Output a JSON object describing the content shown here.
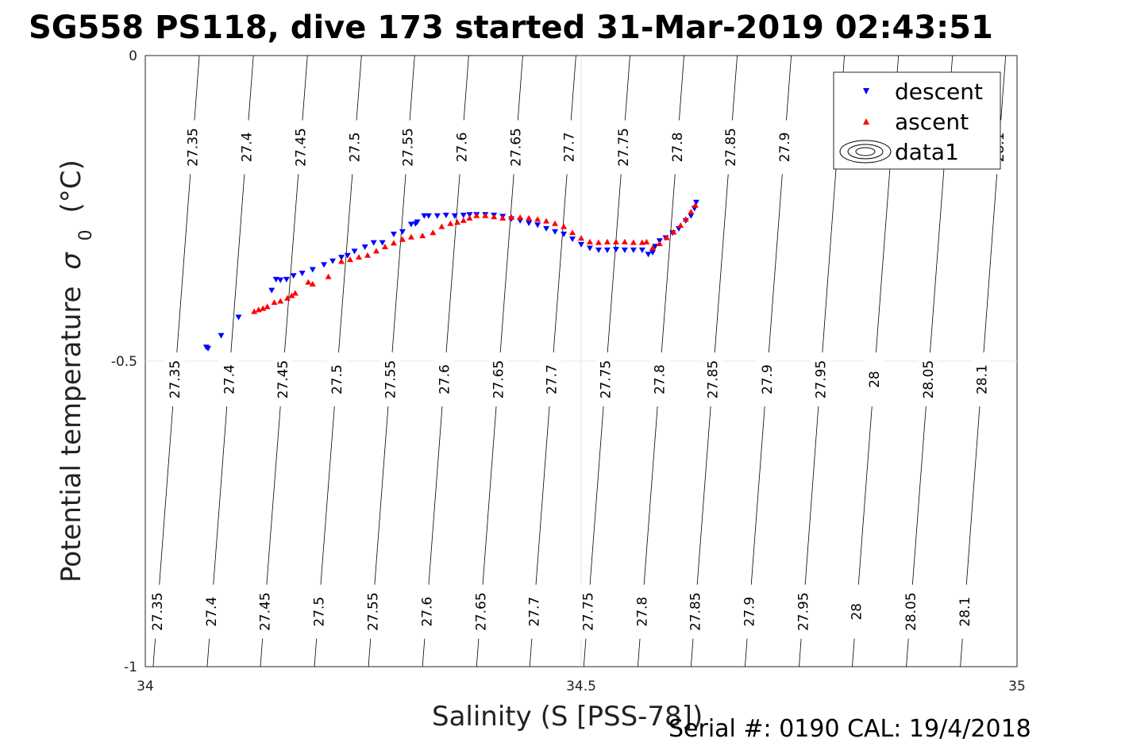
{
  "chart_data": {
    "type": "scatter",
    "title": "SG558 PS118, dive 173 started 31-Mar-2019 02:43:51",
    "xlabel": "Salinity (S [PSS-78])",
    "ylabel": "Potential temperature",
    "ylabel_sigma": "σ",
    "ylabel_sub": "0",
    "ylabel_unit": "(°C)",
    "xlim": [
      34,
      35
    ],
    "ylim": [
      -1,
      0
    ],
    "xticks": [
      "34",
      "34.5",
      "35"
    ],
    "yticks": [
      "0",
      "-0.5",
      "-1"
    ],
    "grid": true,
    "legend_position": "top-right",
    "legend": [
      "descent",
      "ascent",
      "data1"
    ],
    "footer": "Serial #: 0190  CAL: 19/4/2018",
    "colors": {
      "descent": "#0000ff",
      "ascent": "#ff0000",
      "contour": "#000000"
    },
    "density_contours": {
      "levels": [
        "27.35",
        "27.4",
        "27.45",
        "27.5",
        "27.55",
        "27.6",
        "27.65",
        "27.7",
        "27.75",
        "27.8",
        "27.85",
        "27.9",
        "27.95",
        "28",
        "28.05",
        "28.1"
      ],
      "s_top": [
        34.062,
        34.124,
        34.186,
        34.248,
        34.309,
        34.371,
        34.433,
        34.494,
        34.556,
        34.618,
        34.679,
        34.741,
        34.802,
        34.864,
        34.926,
        34.987
      ],
      "s_bottom": [
        34.009,
        34.071,
        34.132,
        34.194,
        34.256,
        34.318,
        34.38,
        34.441,
        34.503,
        34.565,
        34.626,
        34.688,
        34.75,
        34.811,
        34.873,
        34.935
      ],
      "label_rows": [
        {
          "t": -0.15,
          "labels": [
            "27.35",
            "27.4",
            "27.45",
            "27.5",
            "27.55",
            "27.6",
            "27.65",
            "27.7",
            "27.75",
            "27.8",
            "27.85",
            "27.9",
            "",
            "",
            "",
            "28.1"
          ]
        },
        {
          "t": -0.53,
          "labels": [
            "27.35",
            "27.4",
            "27.45",
            "27.5",
            "27.55",
            "27.6",
            "27.65",
            "27.7",
            "27.75",
            "27.8",
            "27.85",
            "27.9",
            "27.95",
            "28",
            "28.05",
            "28.1"
          ]
        },
        {
          "t": -0.91,
          "labels": [
            "27.35",
            "27.4",
            "27.45",
            "27.5",
            "27.55",
            "27.6",
            "27.65",
            "27.7",
            "27.75",
            "27.8",
            "27.85",
            "27.9",
            "27.95",
            "28",
            "28.05",
            "28.1"
          ]
        }
      ]
    },
    "series": [
      {
        "name": "descent",
        "marker": "triangle-down",
        "points": [
          [
            34.07,
            -0.477
          ],
          [
            34.072,
            -0.479
          ],
          [
            34.087,
            -0.458
          ],
          [
            34.107,
            -0.428
          ],
          [
            34.145,
            -0.384
          ],
          [
            34.15,
            -0.366
          ],
          [
            34.155,
            -0.367
          ],
          [
            34.162,
            -0.366
          ],
          [
            34.17,
            -0.36
          ],
          [
            34.18,
            -0.356
          ],
          [
            34.192,
            -0.35
          ],
          [
            34.205,
            -0.342
          ],
          [
            34.215,
            -0.336
          ],
          [
            34.225,
            -0.33
          ],
          [
            34.232,
            -0.327
          ],
          [
            34.24,
            -0.32
          ],
          [
            34.252,
            -0.313
          ],
          [
            34.262,
            -0.306
          ],
          [
            34.272,
            -0.306
          ],
          [
            34.285,
            -0.292
          ],
          [
            34.295,
            -0.288
          ],
          [
            34.305,
            -0.276
          ],
          [
            34.31,
            -0.275
          ],
          [
            34.312,
            -0.272
          ],
          [
            34.32,
            -0.262
          ],
          [
            34.325,
            -0.262
          ],
          [
            34.335,
            -0.262
          ],
          [
            34.345,
            -0.261
          ],
          [
            34.355,
            -0.262
          ],
          [
            34.365,
            -0.261
          ],
          [
            34.372,
            -0.26
          ],
          [
            34.38,
            -0.26
          ],
          [
            34.39,
            -0.26
          ],
          [
            34.4,
            -0.261
          ],
          [
            34.41,
            -0.263
          ],
          [
            34.42,
            -0.267
          ],
          [
            34.43,
            -0.27
          ],
          [
            34.44,
            -0.274
          ],
          [
            34.45,
            -0.277
          ],
          [
            34.46,
            -0.283
          ],
          [
            34.47,
            -0.288
          ],
          [
            34.48,
            -0.292
          ],
          [
            34.49,
            -0.3
          ],
          [
            34.5,
            -0.309
          ],
          [
            34.51,
            -0.315
          ],
          [
            34.52,
            -0.318
          ],
          [
            34.53,
            -0.318
          ],
          [
            34.54,
            -0.317
          ],
          [
            34.55,
            -0.318
          ],
          [
            34.56,
            -0.318
          ],
          [
            34.57,
            -0.318
          ],
          [
            34.577,
            -0.325
          ],
          [
            34.582,
            -0.322
          ],
          [
            34.585,
            -0.312
          ],
          [
            34.59,
            -0.303
          ],
          [
            34.597,
            -0.298
          ],
          [
            34.605,
            -0.29
          ],
          [
            34.612,
            -0.283
          ],
          [
            34.62,
            -0.27
          ],
          [
            34.626,
            -0.262
          ],
          [
            34.63,
            -0.25
          ],
          [
            34.632,
            -0.24
          ]
        ]
      },
      {
        "name": "ascent",
        "marker": "triangle-up",
        "points": [
          [
            34.125,
            -0.419
          ],
          [
            34.13,
            -0.416
          ],
          [
            34.135,
            -0.414
          ],
          [
            34.14,
            -0.411
          ],
          [
            34.148,
            -0.404
          ],
          [
            34.155,
            -0.402
          ],
          [
            34.163,
            -0.397
          ],
          [
            34.168,
            -0.393
          ],
          [
            34.172,
            -0.389
          ],
          [
            34.187,
            -0.371
          ],
          [
            34.192,
            -0.374
          ],
          [
            34.21,
            -0.362
          ],
          [
            34.225,
            -0.337
          ],
          [
            34.235,
            -0.334
          ],
          [
            34.245,
            -0.33
          ],
          [
            34.255,
            -0.327
          ],
          [
            34.265,
            -0.32
          ],
          [
            34.275,
            -0.313
          ],
          [
            34.285,
            -0.307
          ],
          [
            34.295,
            -0.301
          ],
          [
            34.305,
            -0.297
          ],
          [
            34.318,
            -0.295
          ],
          [
            34.33,
            -0.29
          ],
          [
            34.34,
            -0.28
          ],
          [
            34.35,
            -0.275
          ],
          [
            34.358,
            -0.273
          ],
          [
            34.365,
            -0.27
          ],
          [
            34.372,
            -0.266
          ],
          [
            34.38,
            -0.262
          ],
          [
            34.39,
            -0.262
          ],
          [
            34.4,
            -0.264
          ],
          [
            34.41,
            -0.266
          ],
          [
            34.42,
            -0.265
          ],
          [
            34.43,
            -0.265
          ],
          [
            34.44,
            -0.266
          ],
          [
            34.45,
            -0.268
          ],
          [
            34.46,
            -0.271
          ],
          [
            34.47,
            -0.275
          ],
          [
            34.48,
            -0.28
          ],
          [
            34.49,
            -0.29
          ],
          [
            34.5,
            -0.299
          ],
          [
            34.51,
            -0.305
          ],
          [
            34.52,
            -0.306
          ],
          [
            34.53,
            -0.305
          ],
          [
            34.54,
            -0.305
          ],
          [
            34.55,
            -0.305
          ],
          [
            34.56,
            -0.306
          ],
          [
            34.57,
            -0.306
          ],
          [
            34.575,
            -0.305
          ],
          [
            34.582,
            -0.315
          ],
          [
            34.59,
            -0.308
          ],
          [
            34.598,
            -0.298
          ],
          [
            34.606,
            -0.289
          ],
          [
            34.614,
            -0.278
          ],
          [
            34.62,
            -0.268
          ],
          [
            34.626,
            -0.256
          ],
          [
            34.631,
            -0.245
          ]
        ]
      }
    ]
  }
}
